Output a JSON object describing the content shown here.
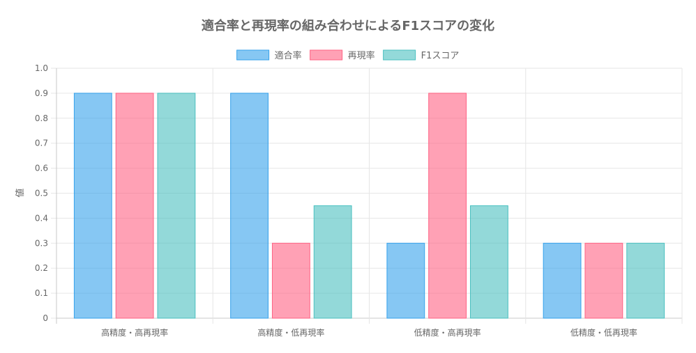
{
  "chart_data": {
    "type": "bar",
    "title": "適合率と再現率の組み合わせによるF1スコアの変化",
    "ylabel": "値",
    "xlabel": "",
    "categories": [
      "高精度・高再現率",
      "高精度・低再現率",
      "低精度・高再現率",
      "低精度・低再現率"
    ],
    "series": [
      {
        "name": "適合率",
        "values": [
          0.9,
          0.9,
          0.3,
          0.3
        ],
        "fill": "#36A2EB",
        "border": "#36A2EB"
      },
      {
        "name": "再現率",
        "values": [
          0.9,
          0.3,
          0.9,
          0.3
        ],
        "fill": "#FF6384",
        "border": "#FF6384"
      },
      {
        "name": "F1スコア",
        "values": [
          0.9,
          0.45,
          0.45,
          0.3
        ],
        "fill": "#4BC0C0",
        "border": "#4BC0C0"
      }
    ],
    "ylim": [
      0,
      1.0
    ],
    "yticks": [
      "0",
      "0.1",
      "0.2",
      "0.3",
      "0.4",
      "0.5",
      "0.6",
      "0.7",
      "0.8",
      "0.9",
      "1.0"
    ],
    "grid": true,
    "legend_position": "top"
  }
}
